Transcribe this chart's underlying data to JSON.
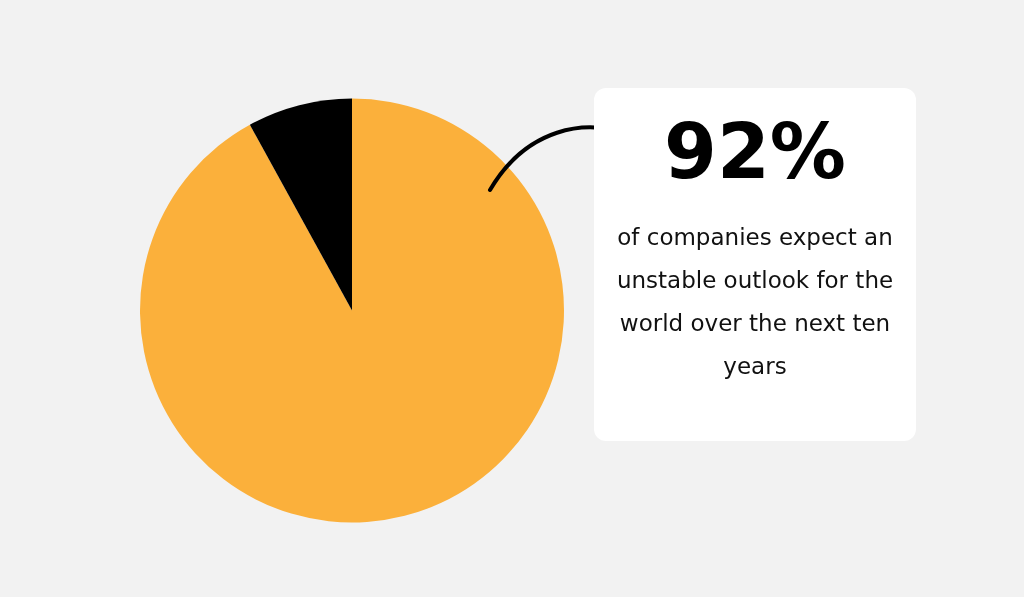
{
  "chart_data": {
    "type": "pie",
    "categories": [
      null,
      null
    ],
    "values": [
      92,
      8
    ],
    "colors": [
      "#fbb03b",
      "#000000"
    ],
    "annotations": [
      "92%",
      "of companies expect an unstable outlook for the world over the next ten years"
    ]
  }
}
